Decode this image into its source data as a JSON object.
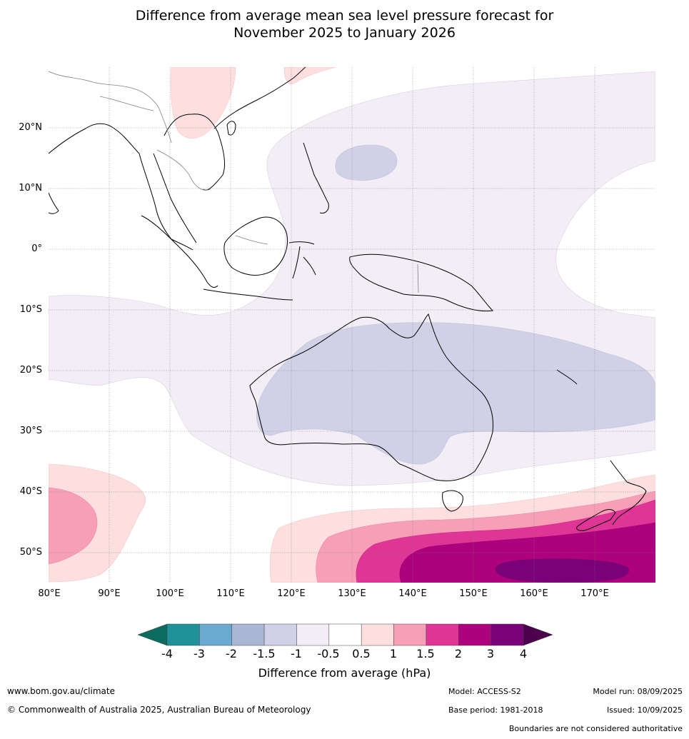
{
  "title_line1": "Difference from average mean sea level pressure forecast for",
  "title_line2": "November 2025 to January 2026",
  "map": {
    "lat_labels": [
      "20°N",
      "10°N",
      "0°",
      "10°S",
      "20°S",
      "30°S",
      "40°S",
      "50°S"
    ],
    "lon_labels": [
      "80°E",
      "90°E",
      "100°E",
      "110°E",
      "120°E",
      "130°E",
      "140°E",
      "150°E",
      "160°E",
      "170°E"
    ],
    "extent": {
      "lon_min": 80,
      "lon_max": 180,
      "lat_min": -55,
      "lat_max": 30
    }
  },
  "colorbar": {
    "ticks": [
      "-4",
      "-3",
      "-2",
      "-1.5",
      "-1",
      "-0.5",
      "0.5",
      "1",
      "1.5",
      "2",
      "3",
      "4"
    ],
    "colors": [
      "#0b6b5f",
      "#1f9199",
      "#6aaad0",
      "#a9b7d4",
      "#d0d1e6",
      "#f3eef6",
      "#ffffff",
      "#fddfdf",
      "#f89fb8",
      "#df3597",
      "#ae017e",
      "#7a0177",
      "#4d004b"
    ],
    "label": "Difference from average (hPa)"
  },
  "footer": {
    "website": "www.bom.gov.au/climate",
    "copyright": "© Commonwealth of Australia 2025, Australian Bureau of Meteorology",
    "model": "Model: ACCESS-S2",
    "base_period": "Base period: 1981-2018",
    "model_run": "Model run: 08/09/2025",
    "issued": "Issued: 10/09/2025",
    "disclaimer": "Boundaries are not considered authoritative"
  }
}
